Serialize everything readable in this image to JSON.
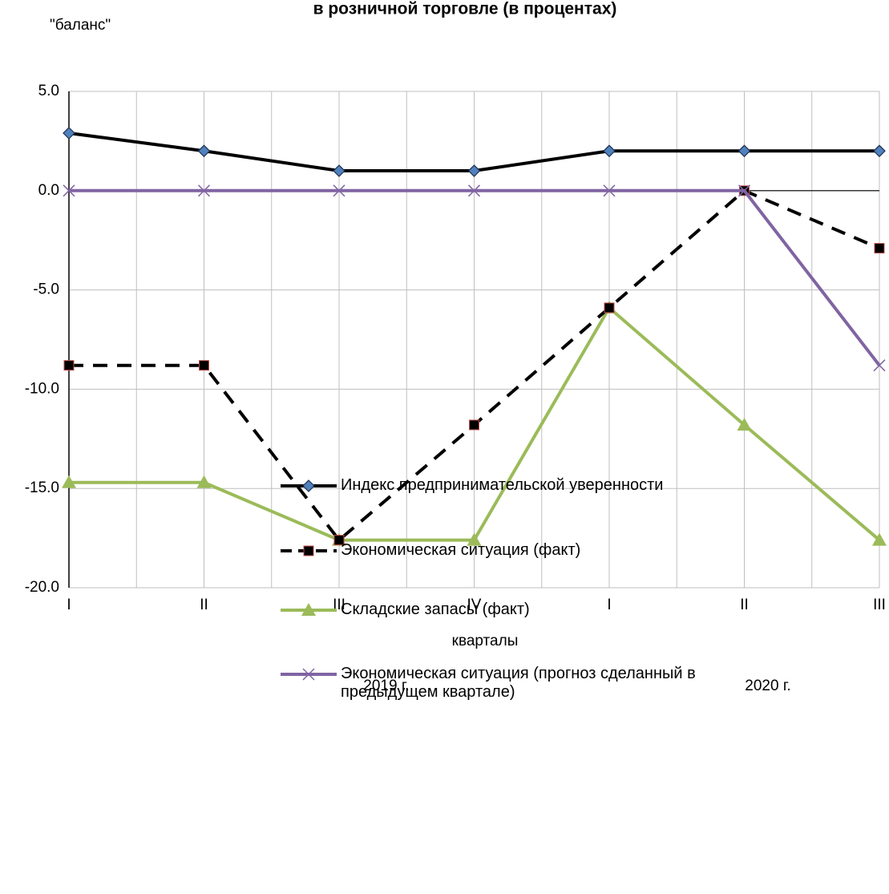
{
  "chart_data": {
    "type": "line",
    "title": "в розничной торговле (в процентах)",
    "ylabel": "\"баланс\"",
    "xlabel": "кварталы",
    "annotations": [
      "2019 г.",
      "2020 г."
    ],
    "categories": [
      "I",
      "II",
      "III",
      "IV",
      "I",
      "II",
      "III"
    ],
    "ylim": [
      -20,
      5
    ],
    "yticks": [
      {
        "value": 5,
        "label": "5.0"
      },
      {
        "value": 0,
        "label": "0.0"
      },
      {
        "value": -5,
        "label": "-5.0"
      },
      {
        "value": -10,
        "label": "-10.0"
      },
      {
        "value": -15,
        "label": "-15.0"
      },
      {
        "value": -20,
        "label": "-20.0"
      }
    ],
    "grid": true,
    "legend": "bottom",
    "series": [
      {
        "name": "Индекс предпринимательской уверенности",
        "color": "#000000",
        "marker": "diamond",
        "values": [
          2.9,
          2.0,
          1.0,
          1.0,
          2.0,
          2.0,
          2.0
        ]
      },
      {
        "name": "Экономическая ситуация (факт)",
        "color": "#000000",
        "marker": "square",
        "dashed": true,
        "values": [
          -8.8,
          -8.8,
          -17.6,
          -11.8,
          -5.9,
          0,
          -2.9
        ]
      },
      {
        "name": "Складские запасы (факт)",
        "color": "#9bbb59",
        "marker": "triangle",
        "values": [
          -14.7,
          -14.7,
          -17.6,
          -17.6,
          -5.9,
          -11.8,
          -17.6
        ]
      },
      {
        "name": "Экономическая ситуация (прогноз сделанный в предыдущем квартале)",
        "color": "#8064a2",
        "marker": "x",
        "values": [
          0,
          0,
          0,
          0,
          0,
          0,
          -8.8
        ]
      }
    ]
  }
}
